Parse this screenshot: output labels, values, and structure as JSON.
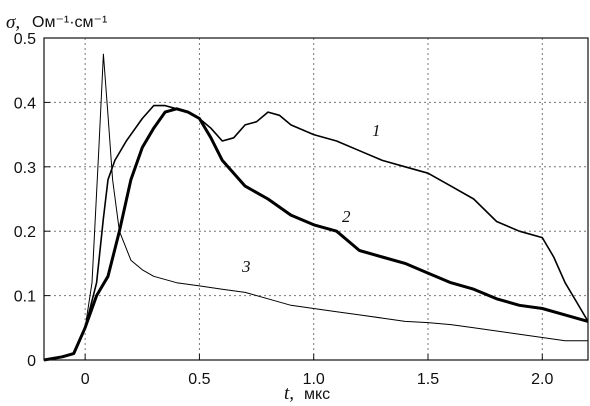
{
  "chart_data": {
    "type": "line",
    "ylabel": "σ,",
    "ylabel_unit": "Ом⁻¹·см⁻¹",
    "xlabel": "t,",
    "xlabel_unit": "мкс",
    "xlim": [
      -0.18,
      2.2
    ],
    "ylim": [
      0,
      0.5
    ],
    "x_ticks": [
      "0",
      "0.5",
      "1.0",
      "1.5",
      "2.0"
    ],
    "y_ticks": [
      "0",
      "0.1",
      "0.2",
      "0.3",
      "0.4",
      "0.5"
    ],
    "grid": true,
    "series": [
      {
        "name": "1",
        "x": [
          -0.18,
          -0.1,
          -0.05,
          0.0,
          0.05,
          0.08,
          0.1,
          0.13,
          0.18,
          0.25,
          0.3,
          0.35,
          0.4,
          0.45,
          0.5,
          0.55,
          0.6,
          0.65,
          0.7,
          0.75,
          0.8,
          0.85,
          0.9,
          1.0,
          1.1,
          1.2,
          1.3,
          1.4,
          1.5,
          1.6,
          1.7,
          1.8,
          1.9,
          2.0,
          2.05,
          2.1,
          2.15,
          2.2
        ],
        "y": [
          0.0,
          0.005,
          0.01,
          0.05,
          0.12,
          0.22,
          0.28,
          0.31,
          0.34,
          0.375,
          0.395,
          0.395,
          0.39,
          0.385,
          0.375,
          0.36,
          0.34,
          0.345,
          0.365,
          0.37,
          0.385,
          0.38,
          0.365,
          0.35,
          0.34,
          0.325,
          0.31,
          0.3,
          0.29,
          0.27,
          0.25,
          0.215,
          0.2,
          0.19,
          0.16,
          0.12,
          0.09,
          0.06
        ]
      },
      {
        "name": "2",
        "x": [
          -0.18,
          -0.1,
          -0.05,
          0.0,
          0.05,
          0.1,
          0.15,
          0.2,
          0.25,
          0.3,
          0.35,
          0.4,
          0.45,
          0.5,
          0.55,
          0.6,
          0.7,
          0.8,
          0.9,
          1.0,
          1.1,
          1.2,
          1.3,
          1.4,
          1.5,
          1.6,
          1.7,
          1.8,
          1.9,
          2.0,
          2.1,
          2.2
        ],
        "y": [
          0.0,
          0.005,
          0.01,
          0.05,
          0.1,
          0.13,
          0.2,
          0.28,
          0.33,
          0.36,
          0.385,
          0.39,
          0.385,
          0.375,
          0.345,
          0.31,
          0.27,
          0.25,
          0.225,
          0.21,
          0.2,
          0.17,
          0.16,
          0.15,
          0.135,
          0.12,
          0.11,
          0.095,
          0.085,
          0.08,
          0.07,
          0.06
        ]
      },
      {
        "name": "3",
        "x": [
          -0.18,
          -0.1,
          -0.05,
          0.0,
          0.03,
          0.06,
          0.08,
          0.1,
          0.12,
          0.15,
          0.2,
          0.25,
          0.3,
          0.4,
          0.5,
          0.6,
          0.7,
          0.8,
          0.9,
          1.0,
          1.1,
          1.2,
          1.3,
          1.4,
          1.5,
          1.6,
          1.7,
          1.8,
          1.9,
          2.0,
          2.1,
          2.2
        ],
        "y": [
          0.0,
          0.005,
          0.01,
          0.05,
          0.12,
          0.33,
          0.475,
          0.38,
          0.28,
          0.2,
          0.155,
          0.14,
          0.13,
          0.12,
          0.115,
          0.11,
          0.105,
          0.095,
          0.085,
          0.08,
          0.075,
          0.07,
          0.065,
          0.06,
          0.058,
          0.055,
          0.05,
          0.045,
          0.04,
          0.035,
          0.03,
          0.03
        ]
      }
    ]
  }
}
